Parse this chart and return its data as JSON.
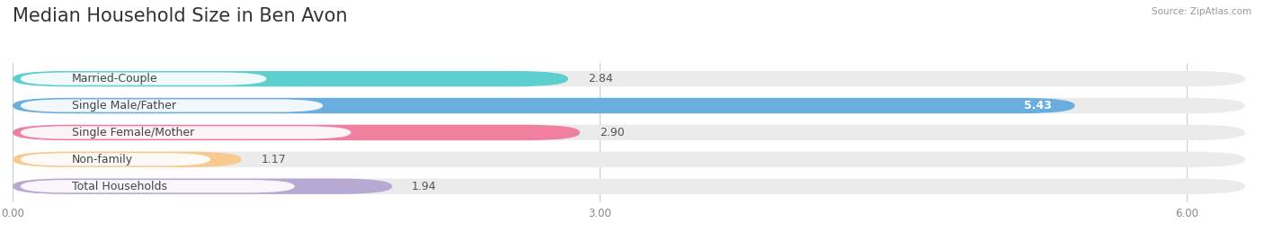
{
  "title": "Median Household Size in Ben Avon",
  "source": "Source: ZipAtlas.com",
  "categories": [
    "Married-Couple",
    "Single Male/Father",
    "Single Female/Mother",
    "Non-family",
    "Total Households"
  ],
  "values": [
    2.84,
    5.43,
    2.9,
    1.17,
    1.94
  ],
  "bar_colors": [
    "#5ecfcf",
    "#6aaddf",
    "#f07fa0",
    "#f8ca90",
    "#b8a8d4"
  ],
  "bar_edge_colors": [
    "#5ecfcf",
    "#6aaddf",
    "#f07fa0",
    "#f8ca90",
    "#b8a8d4"
  ],
  "value_inside": [
    false,
    true,
    false,
    false,
    false
  ],
  "xlim": [
    0,
    6.3
  ],
  "xticks": [
    0.0,
    3.0,
    6.0
  ],
  "xtick_labels": [
    "0.00",
    "3.00",
    "6.00"
  ],
  "bg_color": "#ffffff",
  "bar_bg_color": "#ebebeb",
  "title_fontsize": 15,
  "label_fontsize": 9,
  "value_fontsize": 9
}
